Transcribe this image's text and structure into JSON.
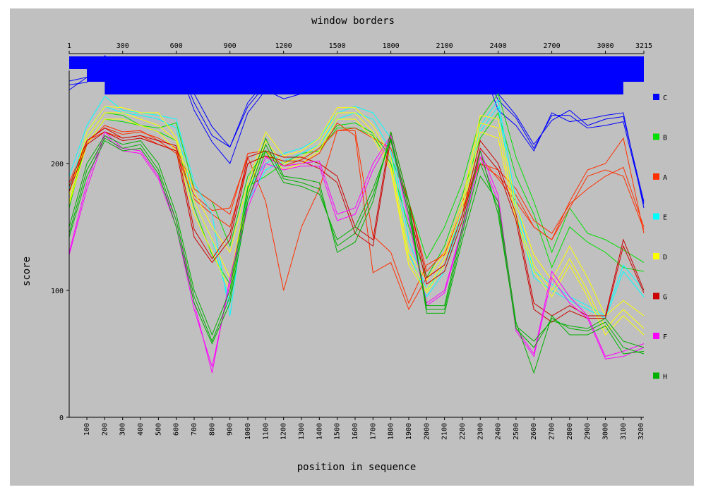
{
  "chart_data": {
    "type": "line",
    "title": "window borders",
    "xlabel": "position in sequence",
    "ylabel": "score",
    "top_ticks": [
      "1",
      "300",
      "600",
      "900",
      "1200",
      "1500",
      "1800",
      "2100",
      "2400",
      "2700",
      "3000",
      "3215"
    ],
    "x_ticks": [
      "100",
      "200",
      "300",
      "400",
      "500",
      "600",
      "700",
      "800",
      "900",
      "1000",
      "1100",
      "1200",
      "1300",
      "1400",
      "1500",
      "1600",
      "1700",
      "1800",
      "1900",
      "2000",
      "2100",
      "2200",
      "2300",
      "2400",
      "2500",
      "2600",
      "2700",
      "2800",
      "2900",
      "3000",
      "3100",
      "3200"
    ],
    "y_ticks": [
      "0",
      "100",
      "200"
    ],
    "xlim": [
      1,
      3215
    ],
    "ylim": [
      0,
      260
    ],
    "grid": false,
    "legend_position": "right",
    "window_bands": [
      {
        "start": 1,
        "end": 3215
      },
      {
        "start": 100,
        "end": 3215
      },
      {
        "start": 200,
        "end": 3100
      }
    ],
    "band_color": "#0000ff",
    "x": [
      1,
      100,
      200,
      300,
      400,
      500,
      600,
      700,
      800,
      900,
      1000,
      1100,
      1200,
      1300,
      1400,
      1500,
      1600,
      1700,
      1800,
      1900,
      2000,
      2100,
      2200,
      2300,
      2400,
      2500,
      2600,
      2700,
      2800,
      2900,
      3000,
      3100,
      3215
    ],
    "series": [
      {
        "name": "C",
        "color": "#0000ff",
        "lines": [
          [
            258,
            268,
            285,
            275,
            279,
            274,
            282,
            248,
            222,
            213,
            248,
            265,
            255,
            263,
            275,
            282,
            272,
            268,
            274,
            265,
            258,
            268,
            272,
            281,
            242,
            230,
            210,
            240,
            233,
            235,
            238,
            240,
            165
          ],
          [
            262,
            264,
            279,
            266,
            276,
            272,
            280,
            255,
            229,
            213,
            245,
            262,
            257,
            261,
            263,
            268,
            265,
            260,
            263,
            257,
            262,
            266,
            272,
            276,
            255,
            238,
            215,
            234,
            242,
            230,
            235,
            237,
            170
          ],
          [
            265,
            268,
            283,
            270,
            274,
            270,
            281,
            242,
            217,
            200,
            240,
            258,
            251,
            255,
            260,
            264,
            262,
            257,
            268,
            263,
            258,
            262,
            270,
            279,
            250,
            236,
            212,
            238,
            238,
            228,
            230,
            233,
            168
          ]
        ]
      },
      {
        "name": "B",
        "color": "#00e000",
        "lines": [
          [
            165,
            220,
            240,
            238,
            230,
            225,
            218,
            165,
            128,
            105,
            182,
            190,
            200,
            208,
            210,
            228,
            228,
            222,
            200,
            150,
            110,
            135,
            175,
            220,
            240,
            190,
            160,
            118,
            150,
            138,
            130,
            118,
            115
          ],
          [
            170,
            215,
            235,
            233,
            230,
            228,
            232,
            180,
            170,
            135,
            190,
            210,
            198,
            203,
            212,
            230,
            232,
            224,
            205,
            170,
            125,
            150,
            185,
            235,
            255,
            205,
            170,
            130,
            165,
            145,
            140,
            132,
            122
          ]
        ]
      },
      {
        "name": "A",
        "color": "#ff3000",
        "lines": [
          [
            180,
            218,
            228,
            223,
            225,
            220,
            212,
            180,
            170,
            160,
            208,
            210,
            198,
            203,
            212,
            226,
            228,
            220,
            212,
            170,
            115,
            130,
            170,
            200,
            195,
            180,
            155,
            145,
            168,
            180,
            190,
            197,
            150
          ],
          [
            185,
            218,
            225,
            220,
            222,
            215,
            210,
            175,
            163,
            165,
            205,
            170,
            100,
            150,
            180,
            226,
            226,
            143,
            130,
            90,
            120,
            128,
            165,
            200,
            190,
            175,
            150,
            140,
            170,
            195,
            200,
            220,
            145
          ],
          [
            178,
            216,
            230,
            225,
            226,
            218,
            208,
            172,
            160,
            150,
            200,
            206,
            198,
            200,
            208,
            232,
            222,
            114,
            122,
            85,
            110,
            120,
            160,
            205,
            188,
            170,
            150,
            140,
            165,
            190,
            195,
            190,
            148
          ]
        ]
      },
      {
        "name": "E",
        "color": "#00ffff",
        "lines": [
          [
            190,
            230,
            253,
            242,
            240,
            238,
            235,
            185,
            160,
            80,
            180,
            200,
            208,
            212,
            220,
            240,
            245,
            240,
            220,
            140,
            100,
            120,
            165,
            230,
            250,
            170,
            115,
            105,
            95,
            88,
            80,
            120,
            100
          ],
          [
            180,
            225,
            245,
            240,
            238,
            235,
            228,
            170,
            140,
            90,
            170,
            195,
            202,
            208,
            215,
            235,
            240,
            235,
            210,
            130,
            95,
            115,
            160,
            225,
            245,
            160,
            110,
            100,
            92,
            85,
            78,
            115,
            95
          ]
        ]
      },
      {
        "name": "D",
        "color": "#ffff00",
        "lines": [
          [
            175,
            225,
            245,
            244,
            240,
            240,
            220,
            178,
            150,
            130,
            185,
            225,
            206,
            210,
            220,
            244,
            244,
            230,
            205,
            130,
            108,
            130,
            170,
            238,
            235,
            168,
            128,
            108,
            135,
            110,
            80,
            92,
            80
          ],
          [
            170,
            220,
            240,
            240,
            235,
            230,
            218,
            170,
            140,
            110,
            178,
            218,
            200,
            205,
            215,
            240,
            240,
            225,
            198,
            125,
            100,
            125,
            165,
            232,
            228,
            160,
            120,
            100,
            125,
            100,
            70,
            85,
            70
          ],
          [
            168,
            215,
            235,
            235,
            230,
            225,
            210,
            160,
            130,
            100,
            170,
            210,
            195,
            200,
            210,
            235,
            235,
            220,
            195,
            120,
            98,
            120,
            160,
            225,
            220,
            155,
            115,
            95,
            120,
            95,
            65,
            80,
            65
          ]
        ]
      },
      {
        "name": "G",
        "color": "#cc0000",
        "lines": [
          [
            182,
            218,
            228,
            220,
            222,
            218,
            214,
            148,
            125,
            145,
            205,
            210,
            205,
            205,
            200,
            190,
            150,
            140,
            225,
            170,
            110,
            120,
            160,
            218,
            200,
            160,
            90,
            80,
            88,
            80,
            80,
            140,
            100
          ],
          [
            178,
            215,
            225,
            218,
            220,
            215,
            210,
            142,
            122,
            140,
            200,
            206,
            202,
            202,
            196,
            185,
            145,
            135,
            220,
            165,
            105,
            115,
            155,
            212,
            195,
            155,
            85,
            75,
            84,
            78,
            78,
            135,
            98
          ]
        ]
      },
      {
        "name": "F",
        "color": "#ff00ff",
        "lines": [
          [
            130,
            185,
            225,
            212,
            210,
            190,
            155,
            90,
            35,
            110,
            170,
            205,
            198,
            200,
            202,
            160,
            165,
            200,
            222,
            160,
            90,
            100,
            150,
            210,
            175,
            70,
            50,
            115,
            95,
            80,
            48,
            52,
            58
          ],
          [
            128,
            180,
            222,
            210,
            208,
            188,
            150,
            85,
            40,
            105,
            165,
            200,
            195,
            198,
            198,
            155,
            160,
            195,
            220,
            155,
            88,
            98,
            148,
            205,
            170,
            68,
            48,
            110,
            90,
            78,
            46,
            48,
            55
          ]
        ]
      },
      {
        "name": "H",
        "color": "#00b000",
        "lines": [
          [
            150,
            200,
            222,
            215,
            218,
            200,
            160,
            100,
            65,
            100,
            180,
            220,
            190,
            188,
            185,
            130,
            138,
            170,
            225,
            170,
            82,
            82,
            140,
            190,
            170,
            75,
            35,
            80,
            65,
            65,
            72,
            50,
            52
          ],
          [
            145,
            195,
            220,
            212,
            215,
            195,
            155,
            95,
            60,
            95,
            175,
            215,
            188,
            185,
            180,
            135,
            145,
            175,
            220,
            165,
            85,
            85,
            145,
            200,
            165,
            70,
            55,
            78,
            70,
            68,
            75,
            55,
            50
          ],
          [
            142,
            190,
            218,
            210,
            212,
            192,
            150,
            90,
            58,
            90,
            170,
            210,
            185,
            182,
            176,
            140,
            150,
            180,
            218,
            160,
            88,
            88,
            150,
            210,
            160,
            72,
            60,
            76,
            72,
            70,
            78,
            60,
            55
          ]
        ]
      }
    ]
  }
}
